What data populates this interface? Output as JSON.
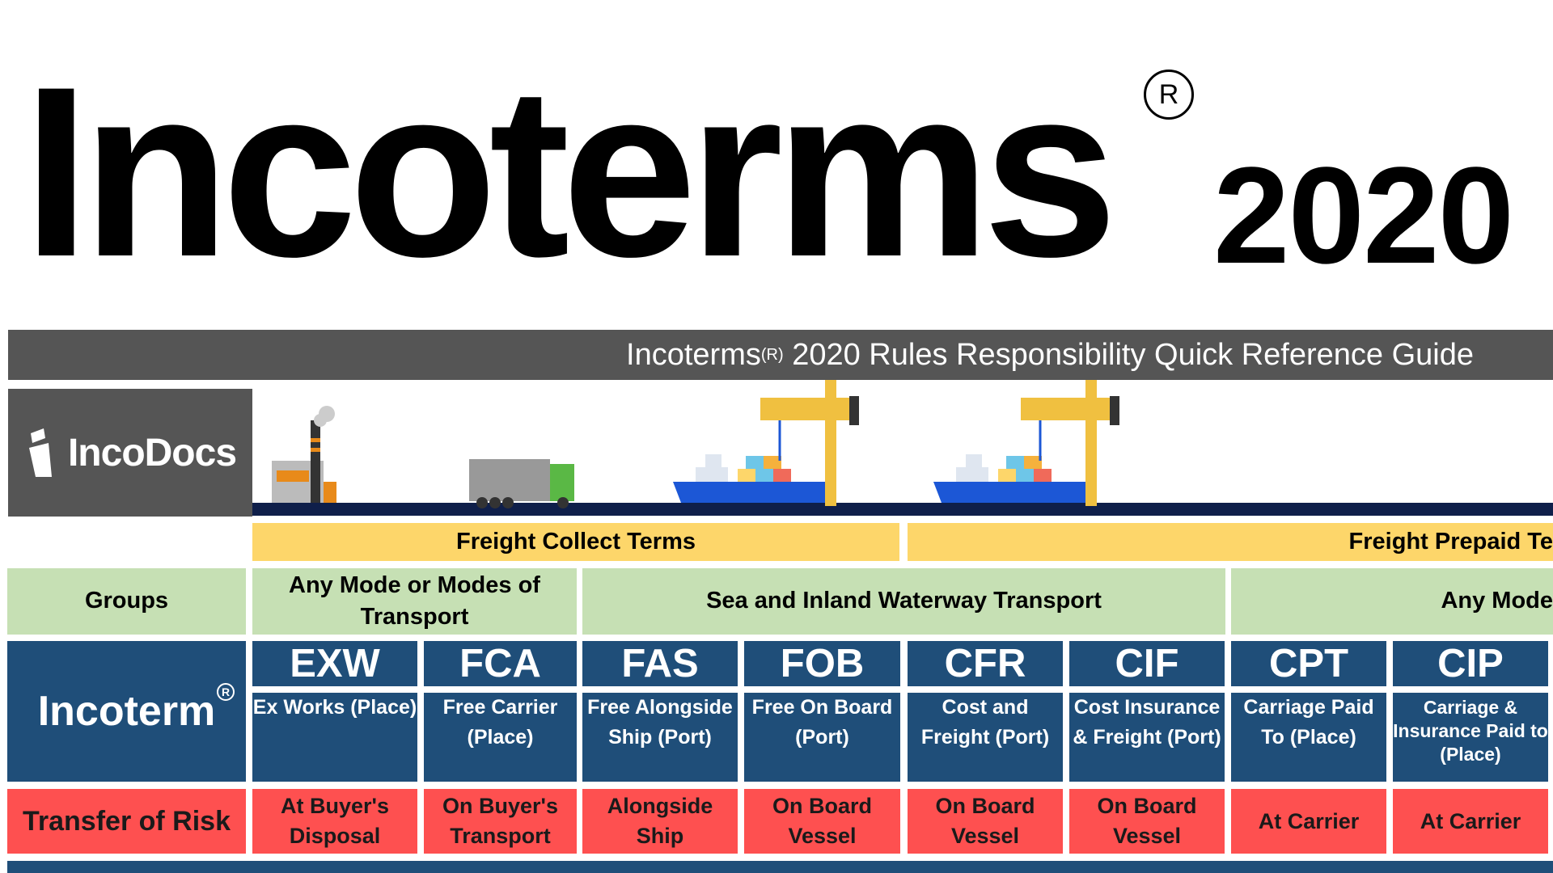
{
  "header": {
    "title": "Incoterms",
    "registered": "R",
    "year": "2020"
  },
  "guide_bar": {
    "prefix": "Incoterms",
    "reg": "R",
    "text": "2020 Rules Responsibility Quick Reference Guide"
  },
  "logo": {
    "text": "IncoDocs"
  },
  "freight_terms": [
    {
      "label": "Freight Collect Terms"
    },
    {
      "label": "Freight Prepaid Te"
    }
  ],
  "groups": {
    "label": "Groups",
    "items": [
      {
        "label": "Any Mode or Modes of Transport"
      },
      {
        "label": "Sea and Inland Waterway Transport"
      },
      {
        "label": "Any Mode"
      }
    ]
  },
  "incoterm_row": {
    "label": "Incoterm",
    "reg": "R"
  },
  "risk_row": {
    "label": "Transfer of Risk"
  },
  "colors": {
    "dark_gray": "#555555",
    "yellow": "#fdd66a",
    "green": "#c6e0b4",
    "blue": "#1f4e79",
    "red": "#fe5050",
    "navy": "#0f1f4a"
  },
  "terms": [
    {
      "code": "EXW",
      "desc": "Ex Works (Place)",
      "risk": "At Buyer's Disposal"
    },
    {
      "code": "FCA",
      "desc": "Free Carrier (Place)",
      "risk": "On Buyer's Transport"
    },
    {
      "code": "FAS",
      "desc": "Free Alongside Ship (Port)",
      "risk": "Alongside Ship"
    },
    {
      "code": "FOB",
      "desc": "Free On Board (Port)",
      "risk": "On Board Vessel"
    },
    {
      "code": "CFR",
      "desc": "Cost and Freight (Port)",
      "risk": "On Board Vessel"
    },
    {
      "code": "CIF",
      "desc": "Cost Insurance & Freight (Port)",
      "risk": "On Board Vessel"
    },
    {
      "code": "CPT",
      "desc": "Carriage Paid To (Place)",
      "risk": "At Carrier"
    },
    {
      "code": "CIP",
      "desc": "Carriage & Insurance Paid to (Place)",
      "risk": "At Carrier"
    }
  ]
}
